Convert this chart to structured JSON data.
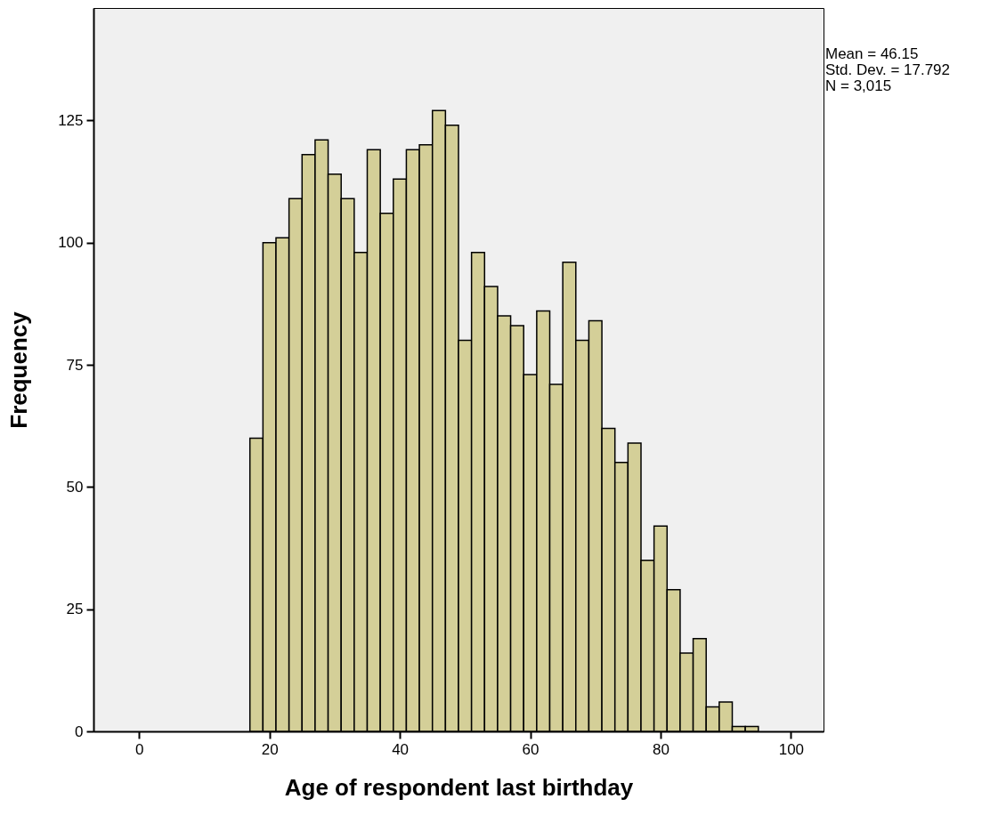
{
  "chart_data": {
    "type": "histogram",
    "xlabel": "Age of respondent last birthday",
    "ylabel": "Frequency",
    "bins": [
      17,
      19,
      21,
      23,
      25,
      27,
      29,
      31,
      33,
      35,
      37,
      39,
      41,
      43,
      45,
      47,
      49,
      51,
      53,
      55,
      57,
      59,
      61,
      63,
      65,
      67,
      69,
      71,
      73,
      75,
      77,
      79,
      81,
      83,
      85,
      87,
      89,
      91,
      93,
      95
    ],
    "values": [
      60,
      100,
      101,
      109,
      118,
      121,
      114,
      109,
      98,
      119,
      106,
      113,
      119,
      120,
      127,
      124,
      80,
      98,
      91,
      85,
      83,
      73,
      86,
      71,
      96,
      80,
      84,
      62,
      55,
      59,
      35,
      42,
      29,
      16,
      19,
      5,
      6,
      1,
      1
    ],
    "color": "#d4cf98",
    "xlim": [
      -7,
      105
    ],
    "ylim": [
      0,
      148
    ],
    "xticks": [
      0,
      20,
      40,
      60,
      80,
      100
    ],
    "yticks": [
      0,
      25,
      50,
      75,
      100,
      125
    ],
    "annotations": [
      "Mean = 46.15",
      "Std. Dev. = 17.792",
      "N = 3,015"
    ]
  }
}
